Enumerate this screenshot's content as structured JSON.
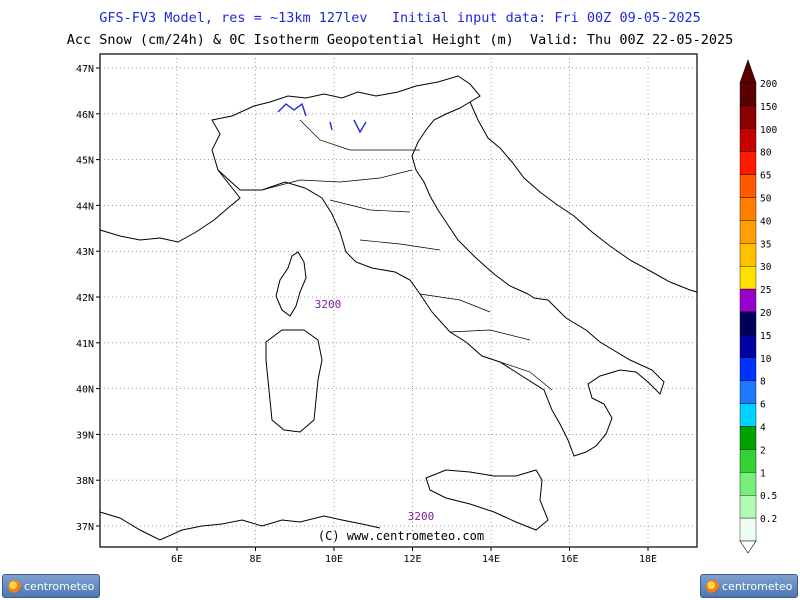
{
  "header": {
    "line1": "GFS-FV3 Model, res = ~13km 127lev   Initial input data: Fri 00Z 09-05-2025",
    "line2": "Acc Snow (cm/24h) & 0C Isotherm Geopotential Height (m)  Valid: Thu 00Z 22-05-2025"
  },
  "map": {
    "lat_labels": [
      "47N",
      "46N",
      "45N",
      "44N",
      "43N",
      "42N",
      "41N",
      "40N",
      "39N",
      "38N",
      "37N"
    ],
    "lon_labels": [
      "6E",
      "8E",
      "10E",
      "12E",
      "14E",
      "16E",
      "18E"
    ],
    "contour_labels": [
      "3200",
      "3200"
    ],
    "copyright": "(C) www.centrometeo.com",
    "contour_color": "#7a1f9c",
    "coast_color": "#000000"
  },
  "legend": {
    "levels": [
      {
        "label": "200",
        "color": "#5a0000"
      },
      {
        "label": "150",
        "color": "#8b0000"
      },
      {
        "label": "100",
        "color": "#c80000"
      },
      {
        "label": "80",
        "color": "#ff1a00"
      },
      {
        "label": "65",
        "color": "#ff5a00"
      },
      {
        "label": "50",
        "color": "#ff8000"
      },
      {
        "label": "40",
        "color": "#ffa000"
      },
      {
        "label": "35",
        "color": "#ffc000"
      },
      {
        "label": "30",
        "color": "#ffe000"
      },
      {
        "label": "25",
        "color": "#9900cc"
      },
      {
        "label": "20",
        "color": "#00005a"
      },
      {
        "label": "15",
        "color": "#0000a0"
      },
      {
        "label": "10",
        "color": "#0032ff"
      },
      {
        "label": "8",
        "color": "#1e78ff"
      },
      {
        "label": "6",
        "color": "#00d2ff"
      },
      {
        "label": "4",
        "color": "#00a000"
      },
      {
        "label": "2",
        "color": "#32d232"
      },
      {
        "label": "1",
        "color": "#78f078"
      },
      {
        "label": "0.5",
        "color": "#b4fab4"
      },
      {
        "label": "0.2",
        "color": "#eefeee"
      }
    ],
    "top_color": "#5a0000"
  },
  "logos": {
    "left_text": "centrometeo",
    "right_text": "centrometeo"
  }
}
